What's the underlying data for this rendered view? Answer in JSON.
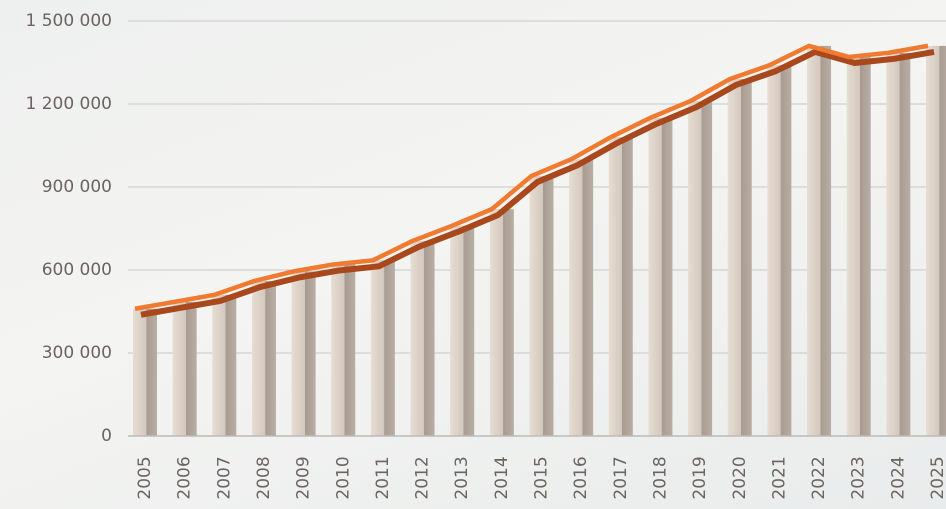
{
  "chart_data": {
    "type": "bar",
    "categories": [
      "2005",
      "2006",
      "2007",
      "2008",
      "2009",
      "2010",
      "2011",
      "2012",
      "2013",
      "2014",
      "2015",
      "2016",
      "2017",
      "2018",
      "2019",
      "2020",
      "2021",
      "2022",
      "2023",
      "2024",
      "2025"
    ],
    "values": [
      460000,
      485000,
      510000,
      560000,
      595000,
      620000,
      635000,
      705000,
      760000,
      820000,
      940000,
      1000000,
      1080000,
      1150000,
      1210000,
      1290000,
      1340000,
      1410000,
      1370000,
      1385000,
      1410000
    ],
    "color": "#c9beb3",
    "line_color": "#f07a30",
    "ylim": [
      0,
      1500000
    ],
    "yticks": [
      0,
      {
        "value": 300000,
        "label": "300 000"
      },
      {
        "value": 600000,
        "label": "600 000"
      },
      {
        "value": 900000,
        "label": "900 000"
      },
      {
        "value": 1200000,
        "label": "1 200 000"
      },
      {
        "value": 1500000,
        "label": "1 500 000"
      }
    ],
    "grid": true
  }
}
